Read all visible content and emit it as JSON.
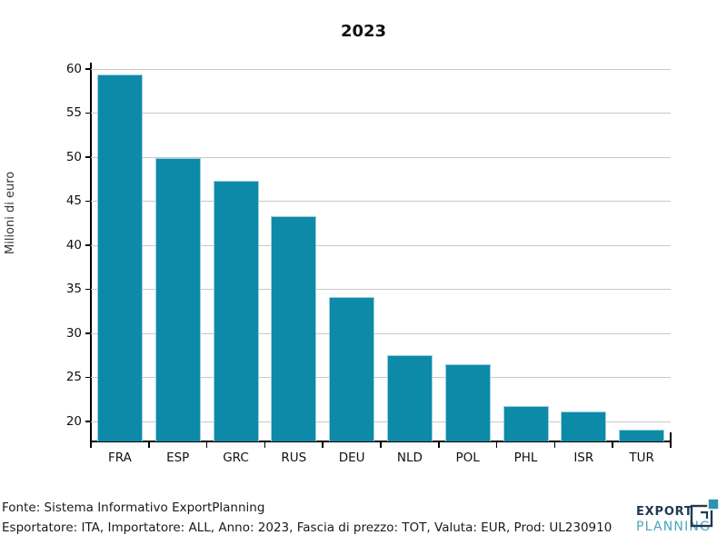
{
  "chart_data": {
    "type": "bar",
    "title": "2023",
    "ylabel": "Milioni di euro",
    "xlabel": "",
    "categories": [
      "FRA",
      "ESP",
      "GRC",
      "RUS",
      "DEU",
      "NLD",
      "POL",
      "PHL",
      "ISR",
      "TUR"
    ],
    "values": [
      59.4,
      49.9,
      47.3,
      43.3,
      34.1,
      27.5,
      26.5,
      21.7,
      21.1,
      19.0
    ],
    "yticks": [
      20,
      25,
      30,
      35,
      40,
      45,
      50,
      55,
      60
    ],
    "ylim": [
      17.7,
      60.7
    ],
    "grid": true,
    "legend": "none",
    "bar_color": "#0d8aa8",
    "bar_edge_color": "#9ecfdd",
    "grid_color": "#c8c8c8",
    "axis_color": "#000000"
  },
  "footer": {
    "line1": "Fonte: Sistema Informativo ExportPlanning",
    "line2": "Esportatore: ITA, Importatore: ALL, Anno: 2023, Fascia di prezzo: TOT, Valuta: EUR, Prod: UL230910"
  },
  "logo": {
    "word1": "EXPORT",
    "word2": "PLANNING",
    "navy": "#1f3a52",
    "teal": "#2e94b0"
  }
}
